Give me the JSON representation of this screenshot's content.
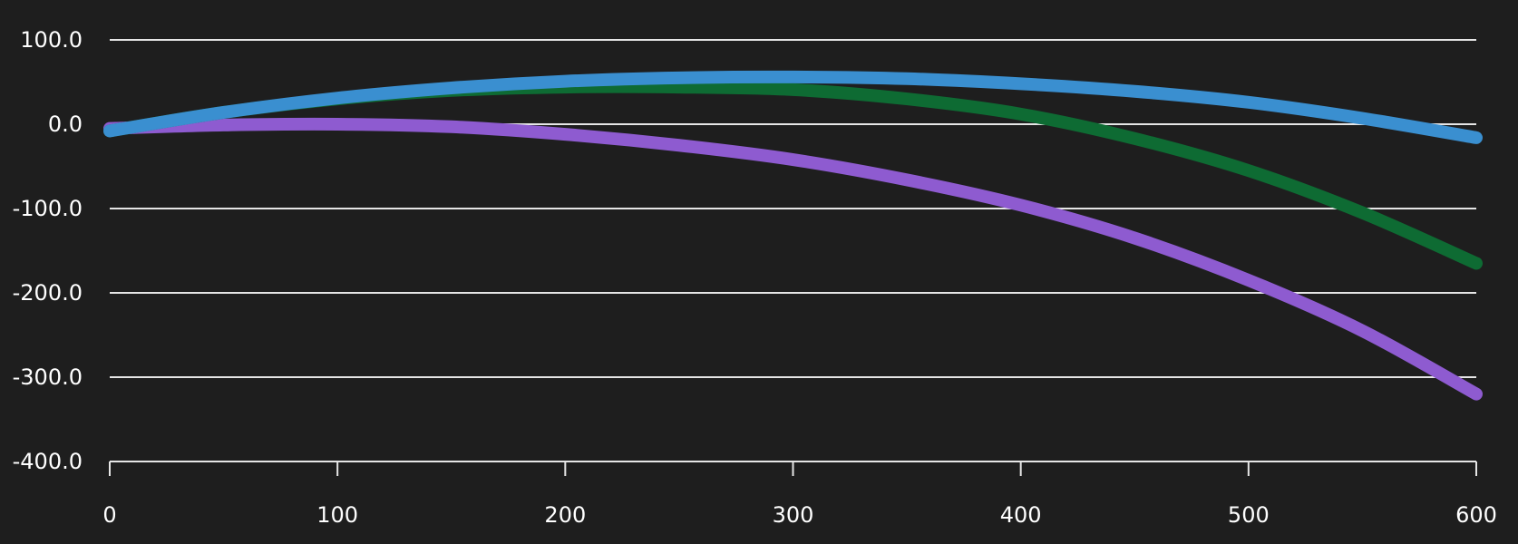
{
  "chart_data": {
    "type": "line",
    "title": "",
    "xlabel": "",
    "ylabel": "",
    "xlim": [
      0,
      600
    ],
    "ylim": [
      -400,
      100
    ],
    "x_ticks": [
      0,
      100,
      200,
      300,
      400,
      500,
      600
    ],
    "x_tick_labels": [
      "0",
      "100",
      "200",
      "300",
      "400",
      "500",
      "600"
    ],
    "y_ticks": [
      100,
      0,
      -100,
      -200,
      -300,
      -400
    ],
    "y_tick_labels": [
      "100.0",
      "0.0",
      "-100.0",
      "-200.0",
      "-300.0",
      "-400.0"
    ],
    "grid": true,
    "legend": "none",
    "x": [
      0,
      50,
      100,
      150,
      200,
      250,
      300,
      350,
      400,
      450,
      500,
      550,
      600
    ],
    "series": [
      {
        "color": "#8e5bd0",
        "values": [
          -5,
          -1,
          0,
          -3,
          -12,
          -25,
          -42,
          -66,
          -96,
          -135,
          -185,
          -245,
          -320
        ]
      },
      {
        "color": "#0e6b33",
        "values": [
          -8,
          14,
          30,
          40,
          44,
          44,
          41,
          30,
          12,
          -17,
          -55,
          -105,
          -165
        ]
      },
      {
        "color": "#3a8fd0",
        "values": [
          -8,
          14,
          31,
          43,
          51,
          55,
          56,
          54,
          48,
          39,
          26,
          7,
          -16
        ]
      }
    ]
  }
}
